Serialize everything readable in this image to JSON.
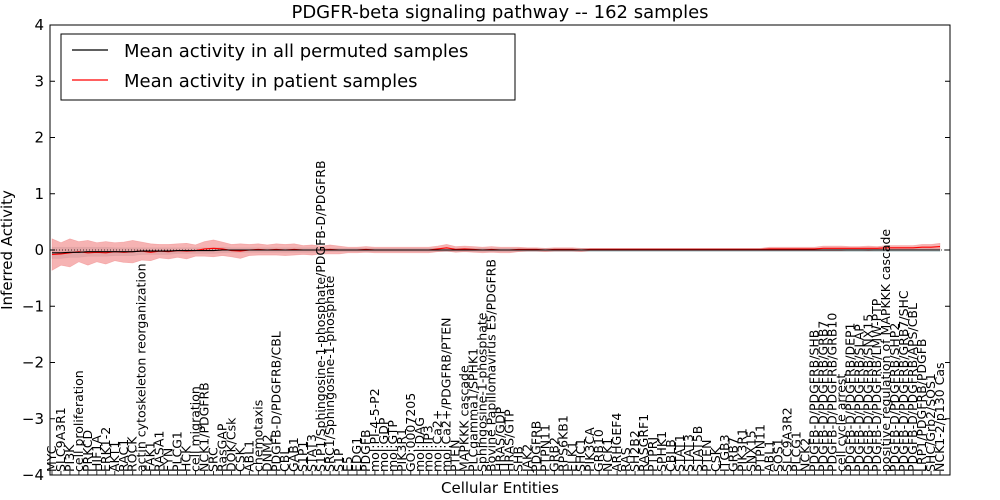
{
  "chart_data": {
    "type": "line",
    "title": "PDGFR-beta signaling pathway -- 162 samples",
    "xlabel": "Cellular Entities",
    "ylabel": "Inferred Activity",
    "ylim": [
      -4,
      4
    ],
    "yticks": [
      -4,
      -3,
      -2,
      -1,
      0,
      1,
      2,
      3,
      4
    ],
    "ytick_labels": [
      "−4",
      "−3",
      "−2",
      "−1",
      "0",
      "1",
      "2",
      "3",
      "4"
    ],
    "grid": false,
    "legend_position": "upper-left",
    "colors": {
      "permuted": "#000000",
      "patient": "#ff0000",
      "patient_band": "#f08080",
      "permuted_band": "#b0c4c8"
    },
    "categories": [
      "MYC",
      "SLC9A3R1",
      "PI3K",
      "cell proliferation",
      "PRKCD",
      "HIF1A",
      "ERK1-2",
      "AKT1",
      "RAC1",
      "ROCK",
      "actin cytoskeleton reorganization",
      "FAK1",
      "RASA1",
      "FYN",
      "PLCG1",
      "HCK",
      "cell migration",
      "NCK1/PDGFRB",
      "SRC",
      "RasGAP",
      "DOK/Csk",
      "CSK",
      "ABL1",
      "chemotaxis",
      "DNM2",
      "PDGFB-D/PDGFRB/CBL",
      "CBL",
      "GAB1",
      "S1P1",
      "STAT3",
      "S1P1/Sphingosine-1-phosphate/PDGFB-D/PDGFRB",
      "SRC1/Sphingosine-1-phosphate",
      "S1P",
      "E5",
      "EDG1",
      "PDGFB",
      "mol:PI-4-5-P2",
      "mol:GDP",
      "mol:GTP",
      "PIK3R1",
      "GO:0007205",
      "mol:DAG",
      "mol:IP3",
      "mol:Ca2+",
      "mol:Ca2+/PDGFRB/PTEN",
      "PTEN",
      "MAPKKK cascade",
      "PLCgamma1/SPHK1",
      "Sphingosine-1-phosphate",
      "Bovine Papillomavirus E5/PDGFRB",
      "HRAS/GDP",
      "HRAS/GTP",
      "SHB",
      "JAK2",
      "PDGFRB",
      "PTPN11",
      "GRB2",
      "RPS6KB1",
      "ELK1",
      "SHC1",
      "PIK3CA",
      "GRB10",
      "NCK1",
      "ARHGEF4",
      "RAS",
      "SH2B2",
      "RASGRF1",
      "PTPRJ",
      "SPHK1",
      "CBLB",
      "STAT1",
      "STAT3",
      "STAT5B",
      "PTEN",
      "CSK",
      "ITGB3",
      "GRB7",
      "PIK3R1",
      "SNX15",
      "PTPN11",
      "ABL1",
      "SOS1",
      "SLC9A3R2",
      "PLCG1",
      "NCK2",
      "PDGFB-D/PDGFRB/SHB",
      "PDGFB-D/PDGFRB/GRB7",
      "PDGFB-D/PDGFRB/GRB10",
      "cell cycle arrest",
      "PDGFB-D/PDGFRB/DEP1",
      "PDGFB-D/PDGFRB/SLAP",
      "PDGFB-D/PDGFRB/SNX15",
      "PDGFB-D/PDGFRB/LMW-PTP",
      "positive regulation of MAPKKK cascade",
      "PDGFB-D/PDGFRB/SHP2",
      "PDGFB-D/PDGFRB/GRB7/SHC",
      "PDGFB-D/PDGFRB/APS/CBL",
      "LRP1/PDGFRB/PDGFB",
      "SHC/Grb2/SOS1",
      "NCK1-2/p130 Cas"
    ],
    "series": [
      {
        "name": "Mean activity in all permuted samples",
        "values": [
          -0.05,
          -0.05,
          -0.04,
          -0.04,
          -0.03,
          -0.03,
          -0.03,
          -0.03,
          -0.03,
          -0.03,
          -0.02,
          -0.02,
          -0.02,
          -0.02,
          -0.01,
          -0.01,
          -0.01,
          -0.01,
          -0.01,
          0.0,
          0.0,
          0.0,
          0.0,
          0.0,
          0.0,
          0.0,
          0.0,
          0.0,
          0.0,
          0.0,
          0.0,
          0.0,
          0.0,
          0.0,
          0.0,
          0.0,
          0.0,
          0.0,
          0.0,
          0.0,
          0.0,
          0.0,
          0.0,
          0.0,
          0.0,
          0.0,
          0.0,
          0.0,
          0.0,
          0.0,
          0.0,
          0.0,
          0.0,
          0.0,
          0.0,
          0.0,
          0.0,
          0.0,
          0.0,
          0.0,
          0.0,
          0.0,
          0.0,
          0.0,
          0.0,
          0.0,
          0.0,
          0.0,
          0.0,
          0.0,
          0.0,
          0.0,
          0.0,
          0.0,
          0.0,
          0.0,
          0.0,
          0.0,
          0.0,
          0.0,
          0.0,
          0.0,
          0.0,
          0.0,
          0.0,
          0.0,
          0.0,
          0.0,
          0.0,
          0.0,
          0.0,
          0.0,
          0.0,
          0.0,
          0.0,
          0.0,
          0.0,
          0.0,
          0.0,
          0.0
        ],
        "band": [
          0.1,
          0.1,
          0.09,
          0.09,
          0.08,
          0.08,
          0.08,
          0.07,
          0.07,
          0.07,
          0.06,
          0.06,
          0.06,
          0.06,
          0.05,
          0.05,
          0.05,
          0.05,
          0.05,
          0.05,
          0.04,
          0.04,
          0.04,
          0.04,
          0.04,
          0.04,
          0.04,
          0.04,
          0.04,
          0.04,
          0.03,
          0.03,
          0.03,
          0.03,
          0.03,
          0.03,
          0.03,
          0.03,
          0.03,
          0.03,
          0.03,
          0.03,
          0.03,
          0.03,
          0.03,
          0.03,
          0.03,
          0.03,
          0.03,
          0.03,
          0.03,
          0.03,
          0.03,
          0.03,
          0.03,
          0.03,
          0.03,
          0.03,
          0.03,
          0.03,
          0.03,
          0.03,
          0.03,
          0.03,
          0.03,
          0.03,
          0.03,
          0.03,
          0.03,
          0.03,
          0.03,
          0.03,
          0.03,
          0.03,
          0.03,
          0.03,
          0.03,
          0.03,
          0.03,
          0.03,
          0.03,
          0.03,
          0.03,
          0.03,
          0.03,
          0.03,
          0.03,
          0.03,
          0.03,
          0.03,
          0.03,
          0.03,
          0.03,
          0.03,
          0.03,
          0.03,
          0.03,
          0.03,
          0.03,
          0.03
        ]
      },
      {
        "name": "Mean activity in patient samples",
        "values": [
          -0.08,
          -0.07,
          -0.05,
          -0.03,
          -0.05,
          -0.04,
          -0.05,
          -0.03,
          -0.04,
          -0.03,
          -0.02,
          -0.04,
          -0.02,
          -0.03,
          -0.01,
          -0.02,
          -0.01,
          0.02,
          0.03,
          0.02,
          -0.01,
          -0.02,
          0.0,
          0.01,
          0.0,
          0.01,
          0.0,
          0.01,
          0.0,
          0.0,
          0.0,
          0.01,
          0.0,
          0.0,
          0.0,
          0.01,
          0.0,
          0.0,
          0.0,
          0.0,
          0.0,
          0.0,
          0.0,
          0.02,
          0.04,
          0.01,
          0.02,
          0.01,
          0.0,
          0.01,
          0.0,
          0.0,
          0.01,
          0.01,
          0.01,
          0.0,
          0.01,
          0.01,
          0.01,
          0.0,
          0.01,
          0.01,
          0.01,
          0.01,
          0.01,
          0.01,
          0.01,
          0.01,
          0.01,
          0.01,
          0.01,
          0.01,
          0.01,
          0.01,
          0.01,
          0.01,
          0.01,
          0.01,
          0.01,
          0.01,
          0.02,
          0.02,
          0.02,
          0.02,
          0.02,
          0.02,
          0.03,
          0.03,
          0.03,
          0.03,
          0.03,
          0.03,
          0.03,
          0.04,
          0.04,
          0.04,
          0.04,
          0.05,
          0.05,
          0.06
        ],
        "band": [
          0.28,
          0.2,
          0.25,
          0.18,
          0.22,
          0.17,
          0.2,
          0.16,
          0.18,
          0.2,
          0.16,
          0.15,
          0.12,
          0.13,
          0.12,
          0.14,
          0.1,
          0.13,
          0.15,
          0.12,
          0.11,
          0.13,
          0.1,
          0.1,
          0.09,
          0.1,
          0.1,
          0.1,
          0.08,
          0.09,
          0.07,
          0.08,
          0.07,
          0.05,
          0.05,
          0.05,
          0.05,
          0.05,
          0.05,
          0.05,
          0.05,
          0.05,
          0.05,
          0.05,
          0.06,
          0.05,
          0.05,
          0.05,
          0.05,
          0.05,
          0.05,
          0.05,
          0.04,
          0.03,
          0.03,
          0.03,
          0.03,
          0.03,
          0.03,
          0.03,
          0.02,
          0.02,
          0.02,
          0.02,
          0.02,
          0.02,
          0.02,
          0.02,
          0.02,
          0.02,
          0.02,
          0.02,
          0.02,
          0.02,
          0.02,
          0.02,
          0.02,
          0.02,
          0.02,
          0.02,
          0.03,
          0.03,
          0.03,
          0.03,
          0.03,
          0.03,
          0.04,
          0.04,
          0.04,
          0.03,
          0.03,
          0.04,
          0.03,
          0.04,
          0.04,
          0.04,
          0.04,
          0.05,
          0.05,
          0.06
        ]
      }
    ]
  }
}
